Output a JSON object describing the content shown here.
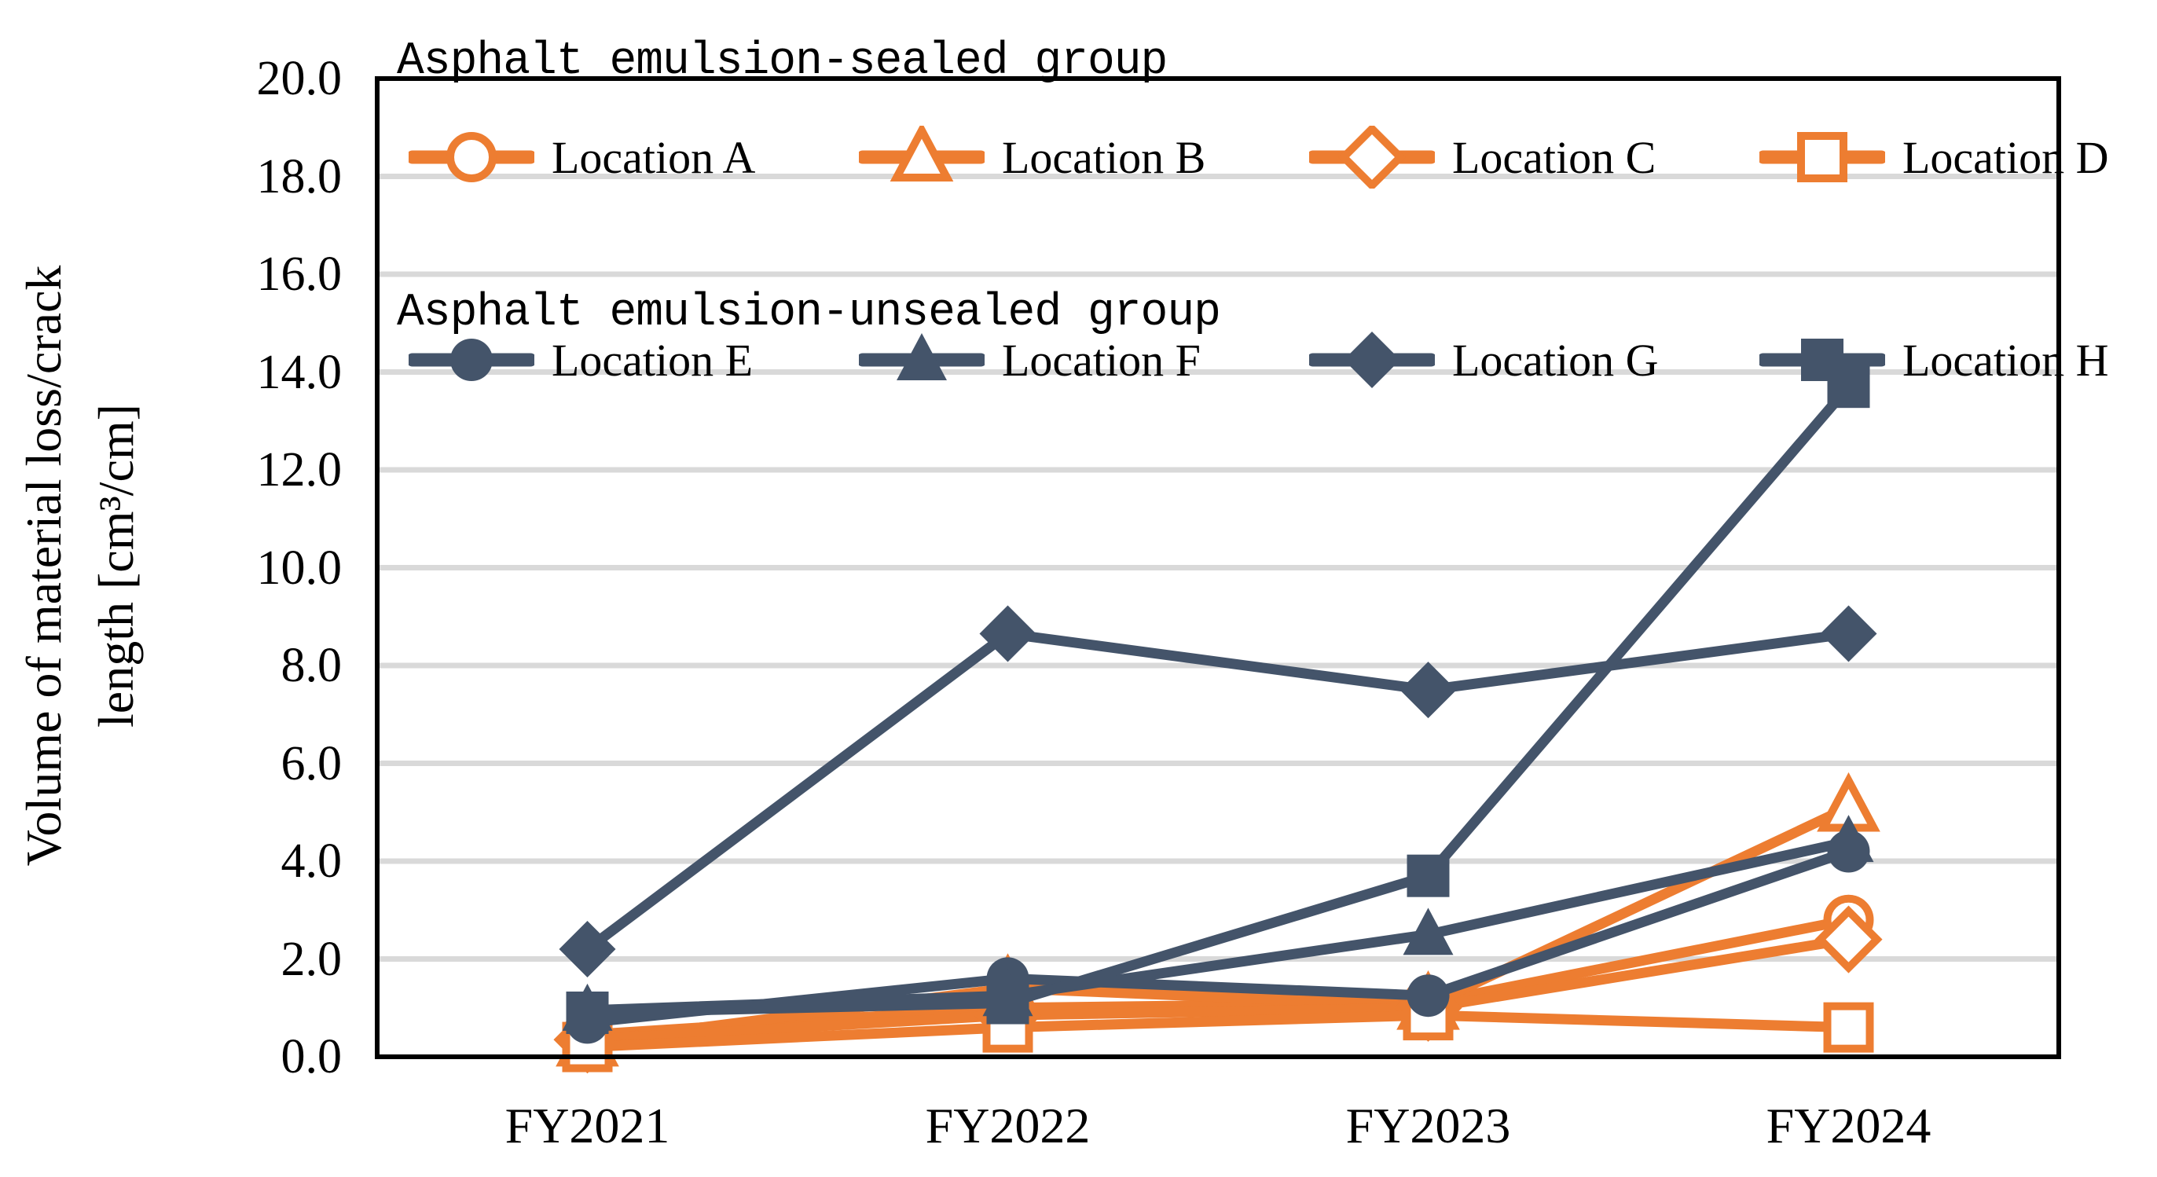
{
  "chart_data": {
    "type": "line",
    "categories": [
      "FY2021",
      "FY2022",
      "FY2023",
      "FY2024"
    ],
    "y_axis": {
      "title_line1": "Volume of material loss/crack",
      "title_line2": "length [cm³/cm]",
      "min": 0,
      "max": 20,
      "step": 2,
      "tick_labels": [
        "0.0",
        "2.0",
        "4.0",
        "6.0",
        "8.0",
        "10.0",
        "12.0",
        "14.0",
        "16.0",
        "18.0",
        "20.0"
      ]
    },
    "grid": "horizontal",
    "legend_position": "inside-top-left",
    "colors": {
      "sealed": "#ED7D31",
      "unsealed": "#44546A",
      "gridline": "#D9D9D9",
      "axis": "#000000",
      "background": "#FFFFFF"
    },
    "groups": [
      {
        "title": "Asphalt emulsion-sealed group",
        "color": "#ED7D31",
        "marker_style": "open",
        "series": [
          {
            "name": "Location A",
            "marker": "circle",
            "values": [
              0.45,
              1.0,
              1.1,
              2.8
            ]
          },
          {
            "name": "Location B",
            "marker": "triangle",
            "values": [
              0.3,
              1.4,
              1.05,
              5.1
            ]
          },
          {
            "name": "Location C",
            "marker": "diamond",
            "values": [
              0.35,
              0.85,
              1.0,
              2.4
            ]
          },
          {
            "name": "Location D",
            "marker": "square",
            "values": [
              0.2,
              0.6,
              0.85,
              0.6
            ]
          }
        ]
      },
      {
        "title": "Asphalt emulsion-unsealed group",
        "color": "#44546A",
        "marker_style": "filled",
        "series": [
          {
            "name": "Location E",
            "marker": "circle",
            "values": [
              0.7,
              1.6,
              1.25,
              4.2
            ]
          },
          {
            "name": "Location F",
            "marker": "triangle",
            "values": [
              0.95,
              1.25,
              2.5,
              4.4
            ]
          },
          {
            "name": "Location G",
            "marker": "diamond",
            "values": [
              2.2,
              8.65,
              7.5,
              8.65
            ]
          },
          {
            "name": "Location H",
            "marker": "square",
            "values": [
              0.9,
              1.1,
              3.7,
              13.7
            ]
          }
        ]
      }
    ]
  }
}
